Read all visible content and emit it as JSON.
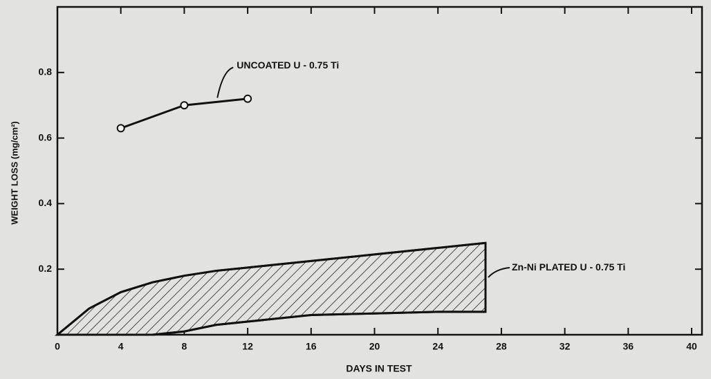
{
  "chart_data": {
    "type": "line",
    "xlabel": "DAYS IN TEST",
    "ylabel": "WEIGHT LOSS (mg/cm²)",
    "xlim": [
      0,
      40
    ],
    "xticks": [
      0,
      4,
      8,
      12,
      16,
      20,
      24,
      28,
      32,
      36,
      40
    ],
    "ylim": [
      0,
      1.0
    ],
    "yticks": [
      0.2,
      0.4,
      0.6,
      0.8
    ],
    "series": [
      {
        "name": "UNCOATED U - 0.75 Ti",
        "color": "#111111",
        "x": [
          4,
          8,
          12
        ],
        "values": [
          0.63,
          0.7,
          0.72
        ]
      }
    ],
    "bands": [
      {
        "name": "Zn-Ni PLATED U - 0.75 Ti",
        "color": "#111111",
        "x": [
          0,
          2,
          4,
          6,
          8,
          10,
          12,
          16,
          20,
          24,
          27
        ],
        "upper": [
          0,
          0.08,
          0.13,
          0.16,
          0.18,
          0.195,
          0.205,
          0.225,
          0.245,
          0.265,
          0.28
        ],
        "lower": [
          0,
          0,
          0,
          0,
          0.01,
          0.03,
          0.04,
          0.06,
          0.065,
          0.07,
          0.07
        ]
      }
    ]
  }
}
